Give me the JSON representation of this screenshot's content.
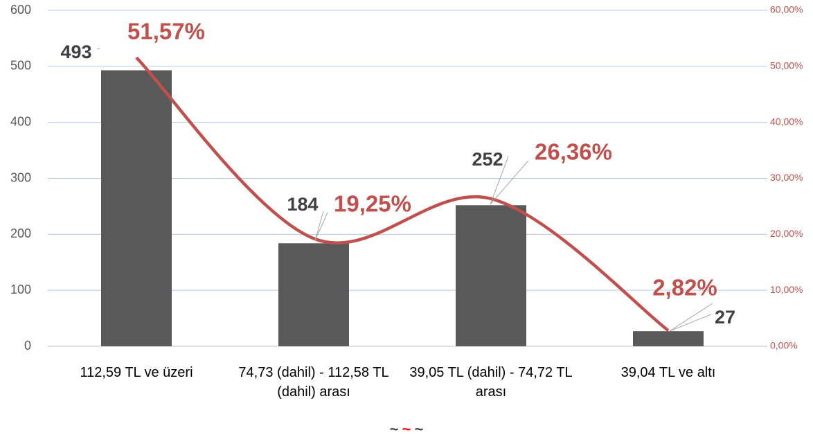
{
  "chart_data": {
    "type": "bar-line",
    "categories": [
      "112,59 TL ve üzeri",
      "74,73 (dahil) - 112,58 TL (dahil) arası",
      "39,05 TL (dahil) - 74,72 TL arası",
      "39,04 TL ve altı"
    ],
    "series": [
      {
        "type": "bar",
        "color": "#595959",
        "values": [
          493,
          184,
          252,
          27
        ]
      },
      {
        "type": "line",
        "axis": "y2",
        "color": "#c0504d",
        "values": [
          51.57,
          19.25,
          26.36,
          2.82
        ],
        "value_labels": [
          "51,57%",
          "19,25%",
          "26,36%",
          "2,82%"
        ]
      }
    ],
    "ylim": [
      0,
      600
    ],
    "yticks": [
      0,
      100,
      200,
      300,
      400,
      500,
      600
    ],
    "y2lim": [
      0,
      60
    ],
    "y2ticks": [
      {
        "value": 0,
        "label": "0,00%"
      },
      {
        "value": 10,
        "label": "10,00%"
      },
      {
        "value": 20,
        "label": "20,00%"
      },
      {
        "value": 30,
        "label": "30,00%"
      },
      {
        "value": 40,
        "label": "40,00%"
      },
      {
        "value": 50,
        "label": "50,00%"
      },
      {
        "value": 60,
        "label": "60,00%"
      }
    ],
    "grid": true,
    "footer": [
      {
        "text": "~",
        "color": "#404040"
      },
      {
        "text": "~",
        "color": "#ff0000"
      },
      {
        "text": "~",
        "color": "#404040"
      }
    ]
  }
}
